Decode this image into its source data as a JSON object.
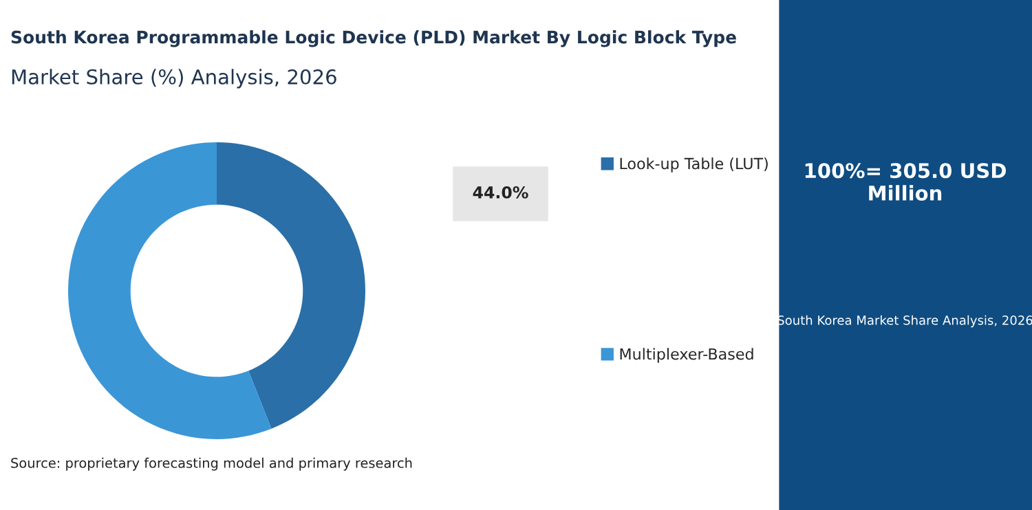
{
  "chart_data": {
    "type": "donut",
    "title": "South Korea Programmable Logic Device (PLD) Market By Logic Block Type",
    "subtitle": "Market Share (%) Analysis, 2026",
    "categories": [
      "Look-up Table (LUT)",
      "Multiplexer-Based"
    ],
    "values": [
      44.0,
      56.0
    ],
    "colors": [
      "#2a6fa8",
      "#3b96d6"
    ],
    "value_labels": [
      "44.0%",
      null
    ],
    "legend": "right",
    "annotations": [
      "100%= 305.0 USD Million",
      "South Korea Market Share Analysis, 2026",
      "Source: proprietary forecasting model and primary research"
    ]
  }
}
